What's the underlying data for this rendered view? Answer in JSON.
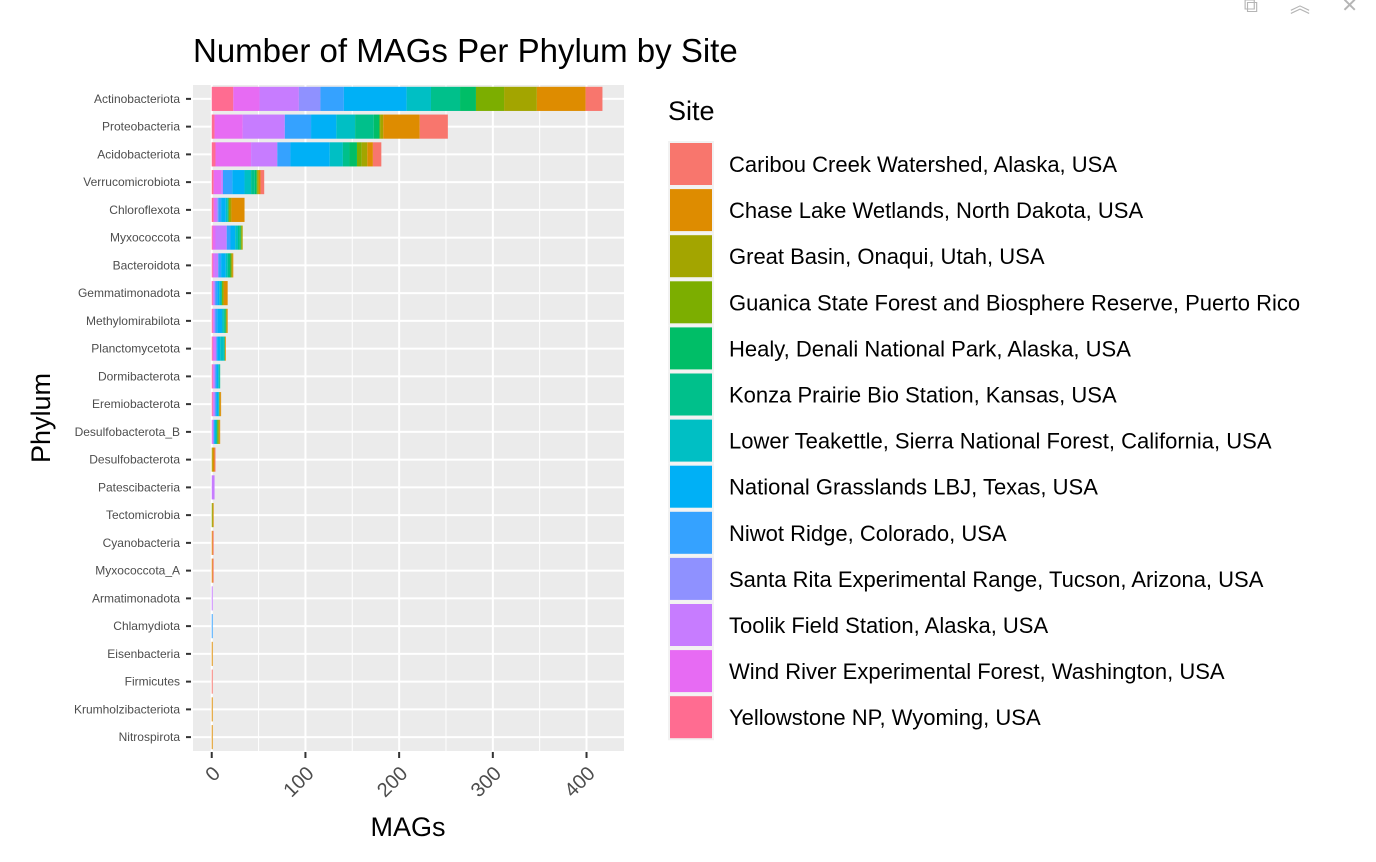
{
  "window": {
    "controls": [
      {
        "name": "popout-icon",
        "glyph": "⧉"
      },
      {
        "name": "collapse-icon",
        "glyph": "︽"
      },
      {
        "name": "close-icon",
        "glyph": "✕"
      }
    ]
  },
  "chart_data": {
    "type": "bar",
    "orientation": "horizontal",
    "stacked": true,
    "title": "Number of MAGs Per Phylum by Site",
    "xlabel": "MAGs",
    "ylabel": "Phylum",
    "xlim": [
      -20,
      440
    ],
    "xticks": [
      0,
      100,
      200,
      300,
      400
    ],
    "grid": true,
    "legend_position": "right",
    "legend_title": "Site",
    "categories": [
      "Actinobacteriota",
      "Proteobacteria",
      "Acidobacteriota",
      "Verrucomicrobiota",
      "Chloroflexota",
      "Myxococcota",
      "Bacteroidota",
      "Gemmatimonadota",
      "Methylomirabilota",
      "Planctomycetota",
      "Dormibacterota",
      "Eremiobacterota",
      "Desulfobacterota_B",
      "Desulfobacterota",
      "Patescibacteria",
      "Tectomicrobia",
      "Cyanobacteria",
      "Myxococcota_A",
      "Armatimonadota",
      "Chlamydiota",
      "Eisenbacteria",
      "Firmicutes",
      "Krumholzibacteriota",
      "Nitrospirota"
    ],
    "series": [
      {
        "name": "Yellowstone NP, Wyoming, USA",
        "color": "#FF6C91",
        "values": [
          23,
          3,
          4,
          2,
          2,
          1,
          1,
          1,
          1,
          1,
          1,
          1,
          0,
          0,
          0,
          0,
          0,
          0,
          0,
          0,
          0,
          0,
          0,
          0
        ]
      },
      {
        "name": "Wind River Experimental Forest, Washington, USA",
        "color": "#E76BF3",
        "values": [
          28,
          30,
          38,
          8,
          2,
          3,
          2,
          1,
          1,
          2,
          1,
          1,
          1,
          0,
          0,
          0,
          0,
          0,
          0,
          0,
          0,
          0,
          0,
          0
        ]
      },
      {
        "name": "Toolik Field Station, Alaska, USA",
        "color": "#C77CFF",
        "values": [
          42,
          45,
          28,
          2,
          2,
          12,
          4,
          1,
          1,
          2,
          1,
          1,
          1,
          0,
          3,
          0,
          0,
          0,
          1,
          0,
          0,
          0,
          0,
          0
        ]
      },
      {
        "name": "Santa Rita Experimental Range, Tucson, Arizona, USA",
        "color": "#8F91FF",
        "values": [
          23,
          0,
          0,
          0,
          1,
          0,
          0,
          1,
          1,
          0,
          1,
          1,
          0,
          0,
          0,
          0,
          0,
          0,
          0,
          0,
          0,
          0,
          0,
          0
        ]
      },
      {
        "name": "Niwot Ridge, Colorado, USA",
        "color": "#35A2FF",
        "values": [
          25,
          28,
          14,
          10,
          3,
          4,
          3,
          2,
          2,
          1,
          1,
          1,
          1,
          0,
          0,
          0,
          0,
          0,
          0,
          1,
          0,
          0,
          0,
          0
        ]
      },
      {
        "name": "National Grasslands LBJ, Texas, USA",
        "color": "#00B0F6",
        "values": [
          67,
          27,
          42,
          13,
          5,
          5,
          5,
          2,
          5,
          3,
          2,
          2,
          1,
          0,
          0,
          0,
          0,
          0,
          0,
          0,
          0,
          0,
          0,
          0
        ]
      },
      {
        "name": "Lower Teakettle, Sierra National Forest, California, USA",
        "color": "#00BFC4",
        "values": [
          26,
          20,
          14,
          7,
          2,
          3,
          2,
          2,
          2,
          4,
          1,
          1,
          1,
          0,
          0,
          0,
          0,
          0,
          0,
          0,
          0,
          0,
          0,
          0
        ]
      },
      {
        "name": "Konza Prairie Bio Station, Kansas, USA",
        "color": "#00C08B",
        "values": [
          31,
          20,
          7,
          4,
          1,
          2,
          2,
          1,
          1,
          1,
          1,
          0,
          1,
          0,
          0,
          0,
          0,
          0,
          0,
          0,
          0,
          0,
          0,
          0
        ]
      },
      {
        "name": "Healy, Denali National Park, Alaska, USA",
        "color": "#00BE67",
        "values": [
          17,
          6,
          8,
          2,
          0,
          1,
          1,
          0,
          1,
          0,
          0,
          0,
          0,
          0,
          0,
          0,
          0,
          0,
          0,
          0,
          0,
          0,
          0,
          0
        ]
      },
      {
        "name": "Guanica State Forest and Biosphere Reserve, Puerto Rico",
        "color": "#7CAE00",
        "values": [
          30,
          1,
          5,
          1,
          1,
          1,
          1,
          1,
          1,
          0,
          0,
          0,
          1,
          0,
          0,
          1,
          0,
          0,
          0,
          0,
          0,
          0,
          0,
          0
        ]
      },
      {
        "name": "Great Basin, Onaqui, Utah, USA",
        "color": "#A3A500",
        "values": [
          35,
          3,
          6,
          1,
          2,
          1,
          1,
          1,
          0,
          0,
          0,
          1,
          1,
          1,
          0,
          0,
          0,
          0,
          0,
          0,
          0,
          0,
          0,
          0
        ]
      },
      {
        "name": "Chase Lake Wetlands, North Dakota, USA",
        "color": "#DE8C00",
        "values": [
          52,
          39,
          6,
          2,
          14,
          0,
          1,
          4,
          1,
          1,
          0,
          1,
          1,
          2,
          0,
          1,
          1,
          1,
          0,
          0,
          1,
          0,
          1,
          1
        ]
      },
      {
        "name": "Caribou Creek Watershed, Alaska, USA",
        "color": "#F8766D",
        "values": [
          18,
          30,
          9,
          4,
          0,
          0,
          0,
          0,
          0,
          0,
          0,
          0,
          0,
          1,
          0,
          0,
          1,
          1,
          0,
          0,
          0,
          1,
          0,
          0
        ]
      }
    ]
  }
}
